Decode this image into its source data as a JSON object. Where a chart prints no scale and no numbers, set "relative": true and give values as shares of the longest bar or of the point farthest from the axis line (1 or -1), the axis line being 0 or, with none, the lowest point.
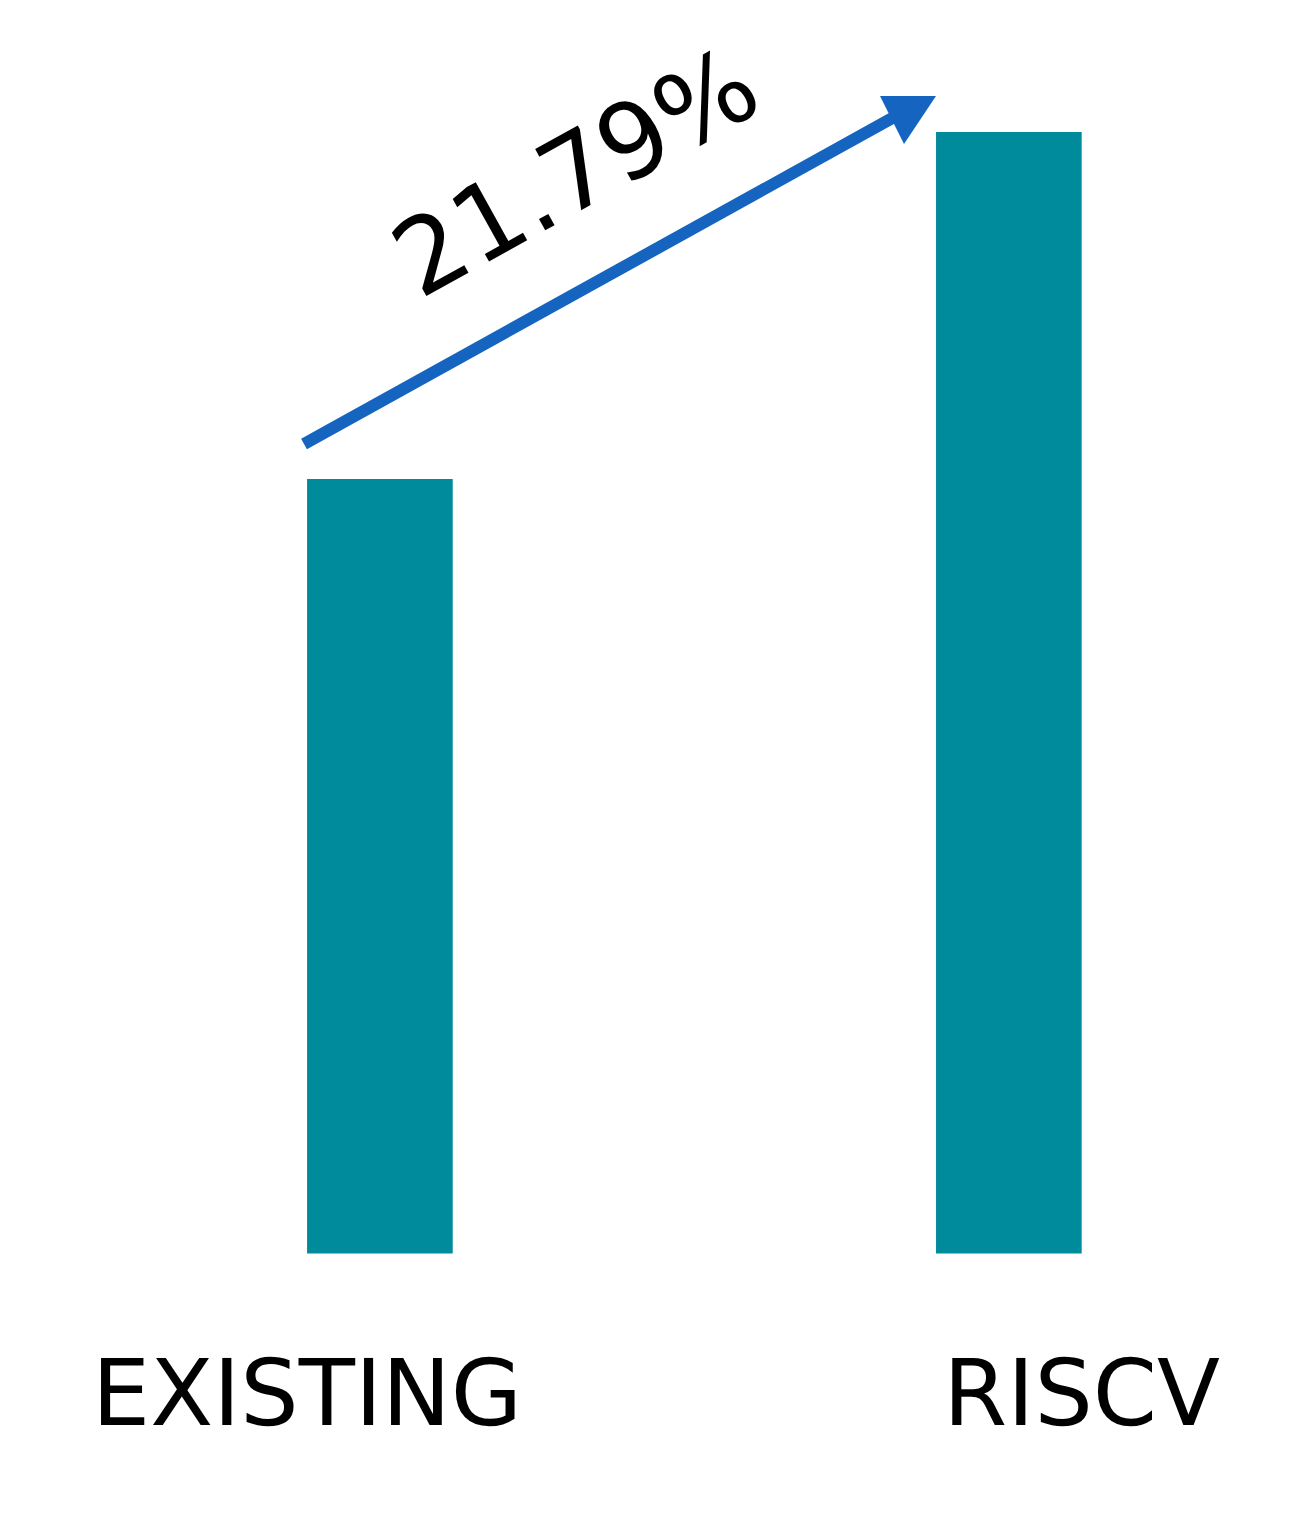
{
  "chart_data": {
    "type": "bar",
    "relative": true,
    "categories": [
      "EXISTING",
      "RISCV"
    ],
    "values": [
      0.69,
      1
    ],
    "color": "#008b9c",
    "annotations": [
      "21.79%"
    ]
  }
}
